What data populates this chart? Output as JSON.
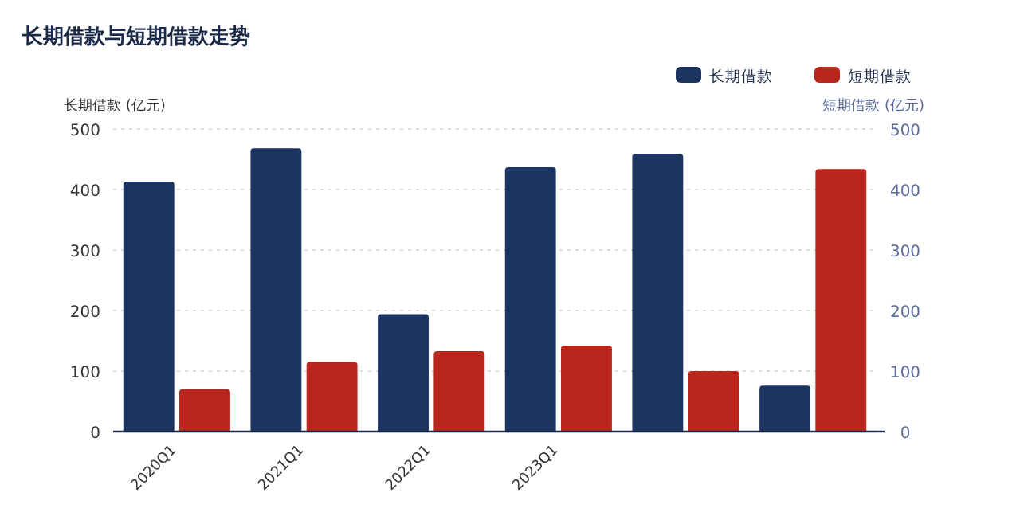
{
  "chart_data": {
    "type": "bar",
    "title": "长期借款与短期借款走势",
    "ylabel": "长期借款 (亿元)",
    "y2label": "短期借款 (亿元)",
    "categories": [
      "2020Q1",
      "2021Q1",
      "2022Q1",
      "2023Q1",
      null,
      null
    ],
    "series": [
      {
        "name": "长期借款",
        "color": "#1c3461",
        "values": [
          413,
          468,
          194,
          437,
          459,
          76
        ]
      },
      {
        "name": "短期借款",
        "color": "#b8261c",
        "axis": "y2",
        "values": [
          70,
          115,
          133,
          142,
          100,
          434
        ]
      }
    ],
    "ylim": [
      0,
      500
    ],
    "yticks": [
      0,
      100,
      200,
      300,
      400,
      500
    ],
    "y2lim": [
      0,
      500
    ],
    "y2ticks": [
      0,
      100,
      200,
      300,
      400,
      500
    ],
    "grid": "y",
    "legend": "top right"
  }
}
